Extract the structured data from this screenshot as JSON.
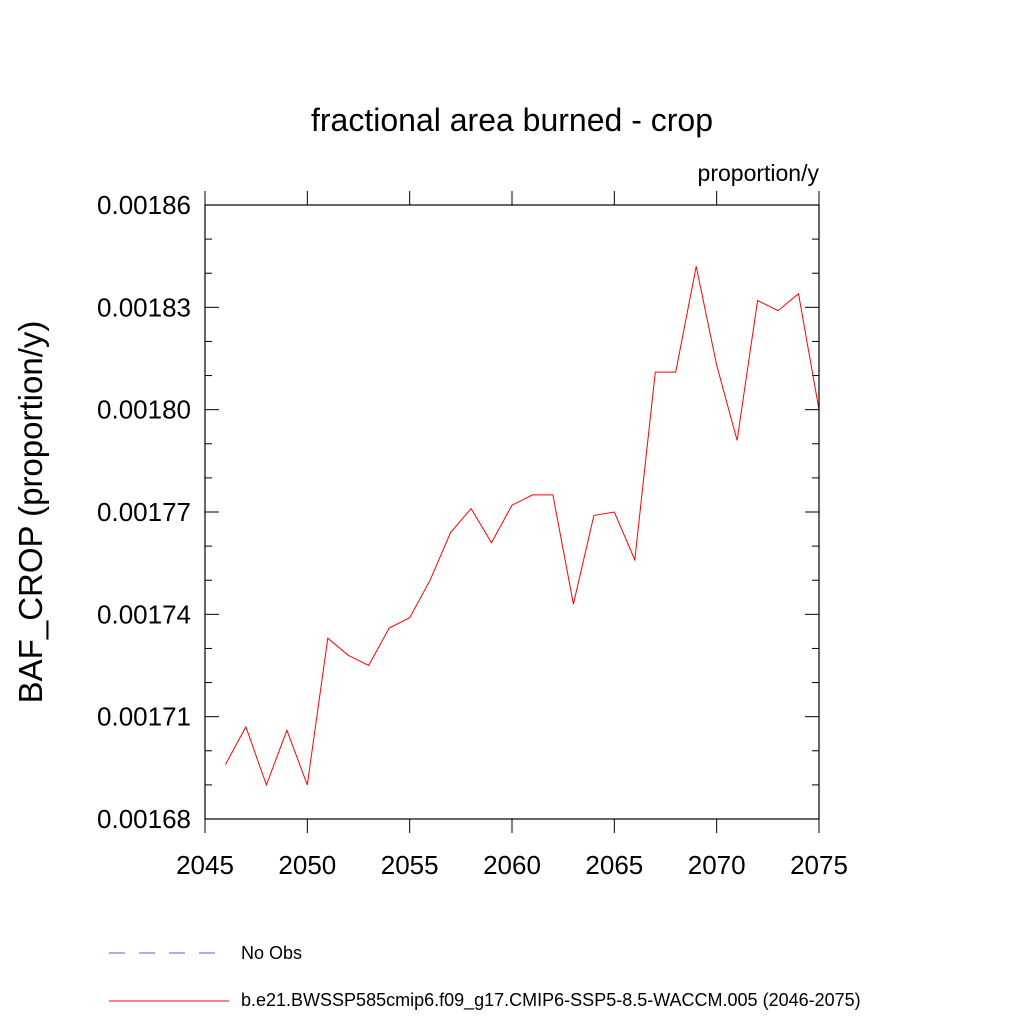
{
  "chart_data": {
    "type": "line",
    "title": "fractional area burned - crop",
    "units": "proportion/y",
    "xlabel": "",
    "ylabel": "BAF_CROP  (proportion/y)",
    "xlim": [
      2045,
      2075
    ],
    "ylim": [
      0.00168,
      0.00186
    ],
    "x_ticks": [
      2045,
      2050,
      2055,
      2060,
      2065,
      2070,
      2075
    ],
    "x_tick_labels": [
      "2045",
      "2050",
      "2055",
      "2060",
      "2065",
      "2070",
      "2075"
    ],
    "y_ticks": [
      0.00168,
      0.00171,
      0.00174,
      0.00177,
      0.0018,
      0.00183,
      0.00186
    ],
    "y_tick_labels": [
      "0.00168",
      "0.00171",
      "0.00174",
      "0.00177",
      "0.00180",
      "0.00183",
      "0.00186"
    ],
    "grid": false,
    "legend_position": "bottom",
    "series": [
      {
        "name": "No Obs",
        "color": "#6a5acd",
        "dash": "dashed",
        "x": [],
        "values": []
      },
      {
        "name": "b.e21.BWSSP585cmip6.f09_g17.CMIP6-SSP5-8.5-WACCM.005 (2046-2075)",
        "color": "#ff0000",
        "dash": "solid",
        "x": [
          2046,
          2047,
          2048,
          2049,
          2050,
          2051,
          2052,
          2053,
          2054,
          2055,
          2056,
          2057,
          2058,
          2059,
          2060,
          2061,
          2062,
          2063,
          2064,
          2065,
          2066,
          2067,
          2068,
          2069,
          2070,
          2071,
          2072,
          2073,
          2074,
          2075
        ],
        "values": [
          0.001696,
          0.001707,
          0.00169,
          0.001706,
          0.00169,
          0.001733,
          0.001728,
          0.001725,
          0.001736,
          0.001739,
          0.00175,
          0.001764,
          0.001771,
          0.001761,
          0.001772,
          0.001775,
          0.001775,
          0.001743,
          0.001769,
          0.00177,
          0.001756,
          0.001811,
          0.001811,
          0.001842,
          0.001813,
          0.001791,
          0.001832,
          0.001829,
          0.001834,
          0.0018
        ]
      }
    ]
  }
}
